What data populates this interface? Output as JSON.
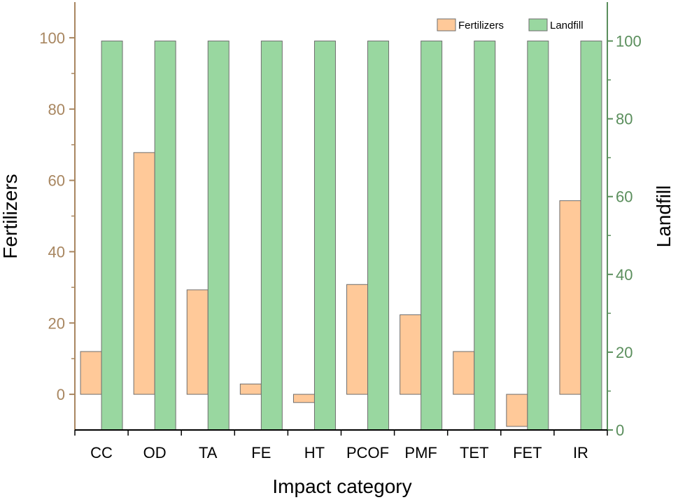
{
  "chart_data": {
    "type": "bar",
    "xlabel": "Impact category",
    "categories": [
      "CC",
      "OD",
      "TA",
      "FE",
      "HT",
      "PCOF",
      "PMF",
      "TET",
      "FET",
      "IR"
    ],
    "series": [
      {
        "name": "Fertilizers",
        "axis": "left",
        "color": "#FFC999",
        "values": [
          12,
          67.8,
          29.3,
          2.9,
          -2.3,
          30.8,
          22.3,
          12,
          -9,
          54.3
        ]
      },
      {
        "name": "Landfill",
        "axis": "right",
        "color": "#99D7A0",
        "values": [
          100,
          100,
          100,
          100,
          100,
          100,
          100,
          100,
          100,
          100
        ]
      }
    ],
    "left_axis": {
      "label": "Fertilizers",
      "color": "#A88660",
      "range": [
        -10,
        110
      ],
      "ticks": [
        0,
        20,
        40,
        60,
        80,
        100
      ],
      "tick_labels": [
        "0",
        "20",
        "40",
        "60",
        "80",
        "100"
      ]
    },
    "right_axis": {
      "label": "Landfill",
      "color": "#5A8E5C",
      "range": [
        0,
        110
      ],
      "ticks": [
        0,
        20,
        40,
        60,
        80,
        100
      ],
      "tick_labels": [
        "0",
        "20",
        "40",
        "60",
        "80",
        "100"
      ]
    },
    "legend": {
      "position": "top-right",
      "entries": [
        "Fertilizers",
        "Landfill"
      ]
    },
    "grid": false,
    "bar_edge_color": "#6E6E6E"
  }
}
